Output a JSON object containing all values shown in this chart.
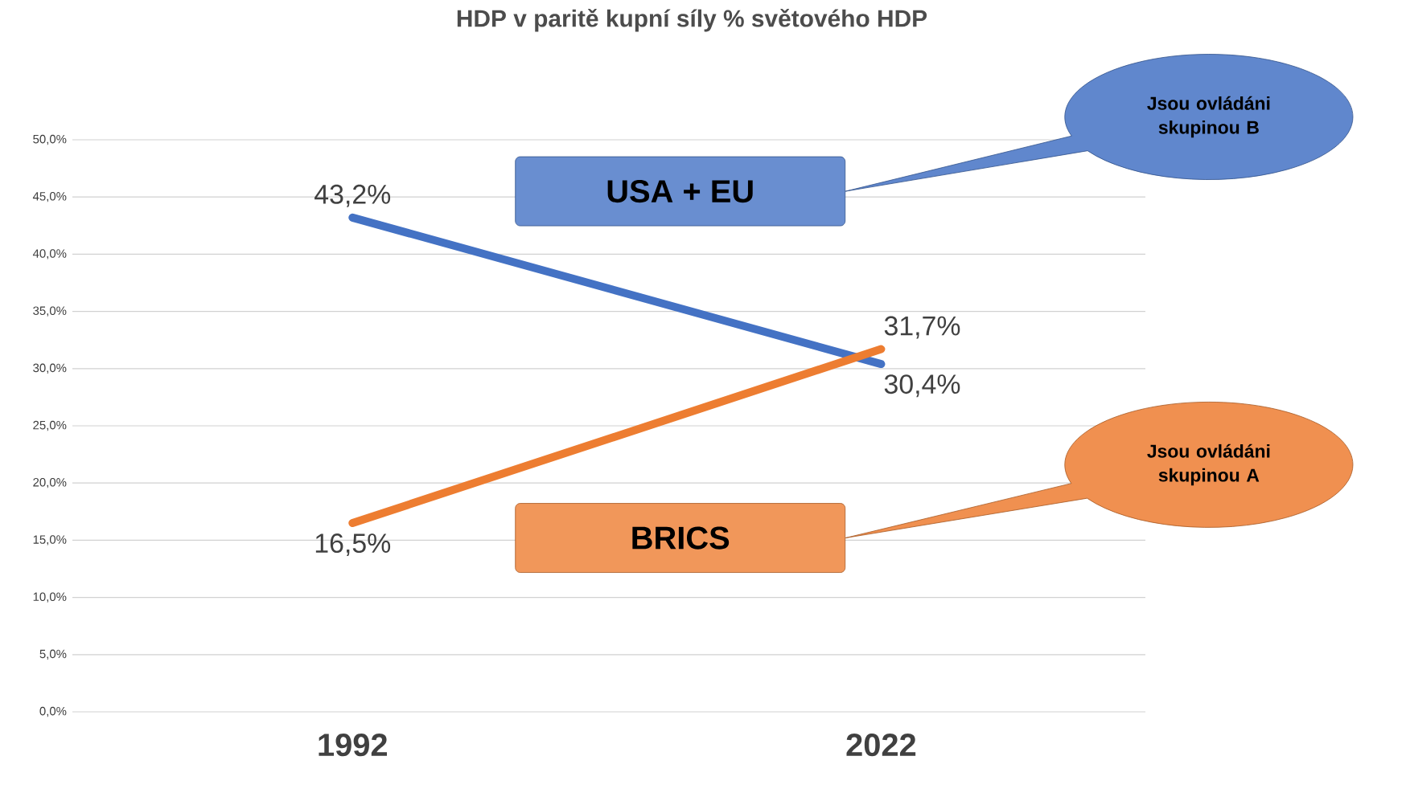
{
  "chart_data": {
    "type": "line",
    "title": "HDP v paritě kupní síly % světového HDP",
    "categories": [
      "1992",
      "2022"
    ],
    "series": [
      {
        "name": "USA + EU",
        "color": "#4472c4",
        "values": [
          43.2,
          30.4
        ],
        "value_labels": [
          "43,2%",
          "30,4%"
        ]
      },
      {
        "name": "BRICS",
        "color": "#ed7d31",
        "values": [
          16.5,
          31.7
        ],
        "value_labels": [
          "16,5%",
          "31,7%"
        ]
      }
    ],
    "ylim": [
      0,
      50
    ],
    "yticks": [
      {
        "value": 0,
        "label": "0,0%"
      },
      {
        "value": 5,
        "label": "5,0%"
      },
      {
        "value": 10,
        "label": "10,0%"
      },
      {
        "value": 15,
        "label": "15,0%"
      },
      {
        "value": 20,
        "label": "20,0%"
      },
      {
        "value": 25,
        "label": "25,0%"
      },
      {
        "value": 30,
        "label": "30,0%"
      },
      {
        "value": 35,
        "label": "35,0%"
      },
      {
        "value": 40,
        "label": "40,0%"
      },
      {
        "value": 45,
        "label": "45,0%"
      },
      {
        "value": 50,
        "label": "50,0%"
      }
    ],
    "grid": "y",
    "marker": "none",
    "line_style": "solid",
    "annotations": [
      "Jsou ovládáni skupinou B",
      "Jsou ovládáni skupinou A"
    ]
  }
}
